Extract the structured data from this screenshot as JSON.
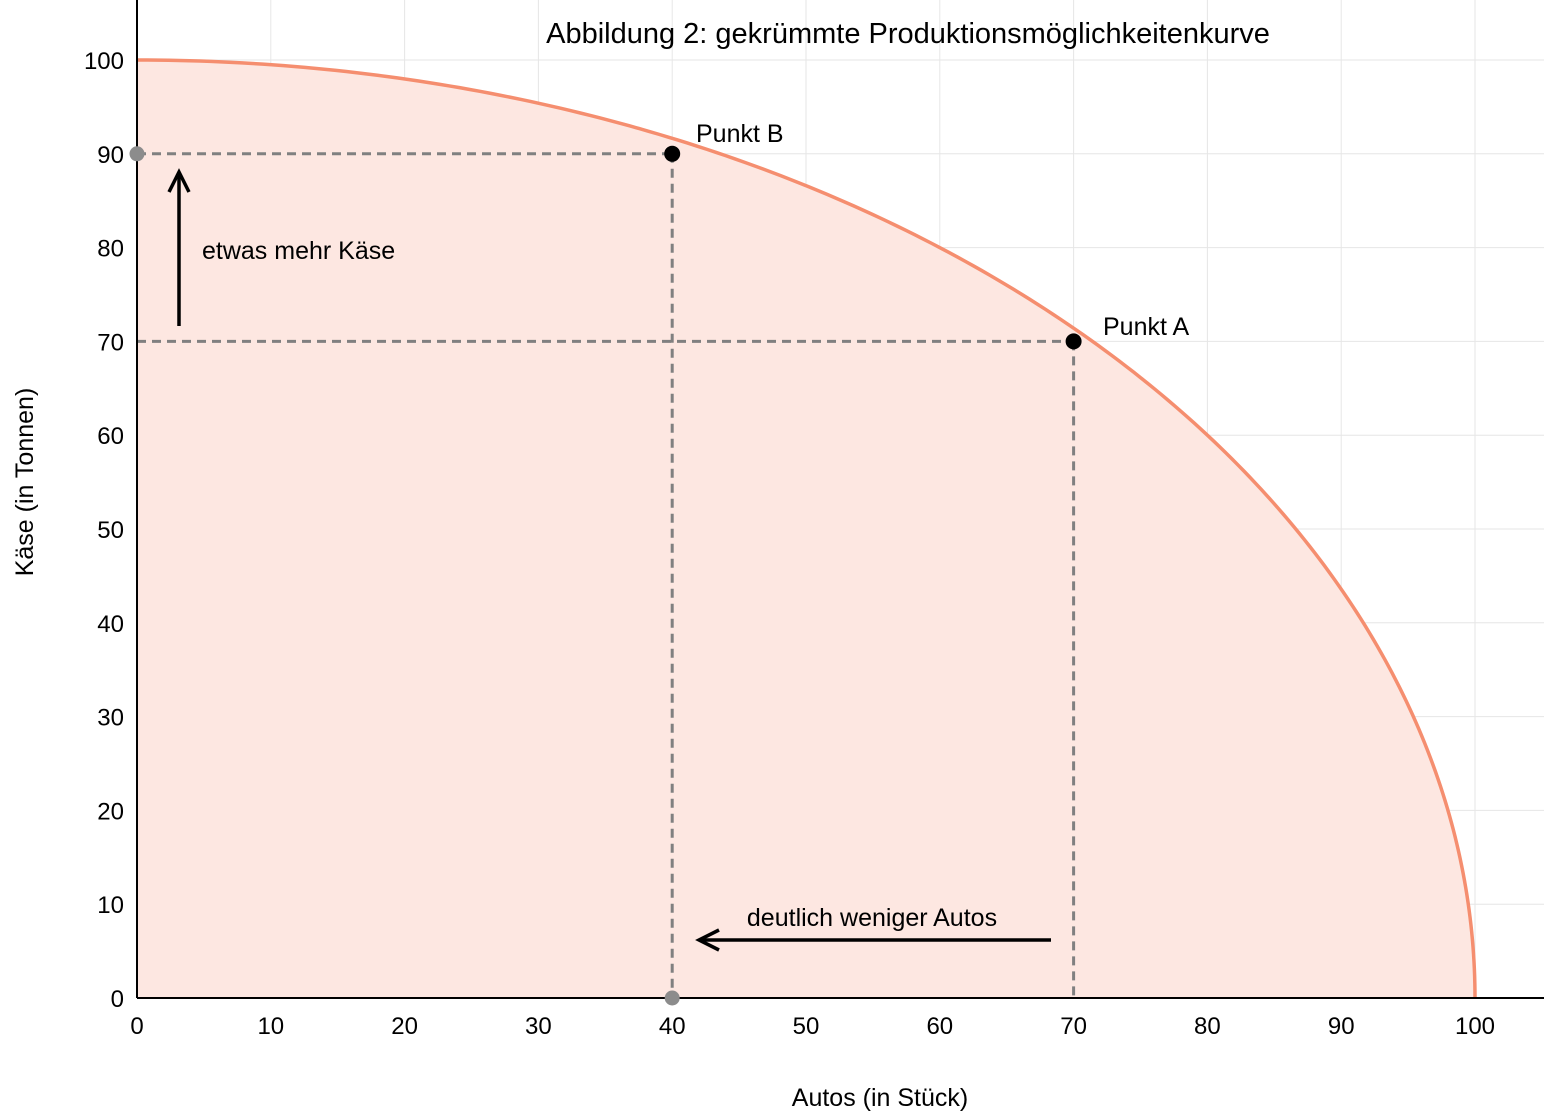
{
  "chart_data": {
    "type": "area",
    "title": "Abbildung 2: gekrümmte Produktionsmöglichkeitenkurve",
    "xlabel": "Autos (in Stück)",
    "ylabel": "Käse (in Tonnen)",
    "xlim": [
      0,
      105
    ],
    "ylim": [
      0,
      100
    ],
    "x_ticks": [
      "0",
      "10",
      "20",
      "30",
      "40",
      "50",
      "60",
      "70",
      "80",
      "90",
      "100"
    ],
    "y_ticks": [
      "0",
      "10",
      "20",
      "30",
      "40",
      "50",
      "60",
      "70",
      "80",
      "90",
      "100"
    ],
    "grid": true,
    "curve": {
      "shape": "quarter-circle",
      "x_intercept": 100,
      "y_intercept": 100,
      "color": "#f58e6f",
      "fill": "#fde7e1"
    },
    "points": [
      {
        "label": "Punkt A",
        "x": 70,
        "y": 70
      },
      {
        "label": "Punkt B",
        "x": 40,
        "y": 90
      }
    ],
    "axis_markers": [
      {
        "x": 0,
        "y": 90
      },
      {
        "x": 40,
        "y": 0
      }
    ],
    "annotations": [
      {
        "text": "etwas mehr Käse",
        "arrow": "up"
      },
      {
        "text": "deutlich weniger Autos",
        "arrow": "left"
      }
    ],
    "colors": {
      "curve": "#f58e6f",
      "fill": "#fde7e1",
      "grid": "#e6e6e6",
      "guide": "#808080",
      "point": "#000000",
      "marker": "#8c8c8c"
    }
  }
}
